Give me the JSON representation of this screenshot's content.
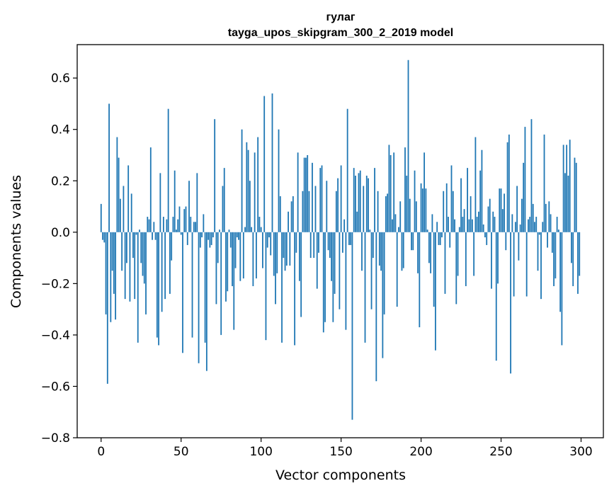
{
  "chart_data": {
    "type": "bar",
    "title": "гулаг",
    "subtitle": "tayga_upos_skipgram_300_2_2019 model",
    "xlabel": "Vector components",
    "ylabel": "Components values",
    "xlim": [
      -14.95,
      313.95
    ],
    "ylim": [
      -0.8,
      0.73
    ],
    "xticks": [
      0,
      50,
      100,
      150,
      200,
      250,
      300
    ],
    "yticks": [
      -0.8,
      -0.6,
      -0.4,
      -0.2,
      0.0,
      0.2,
      0.4,
      0.6
    ],
    "ytick_labels": [
      "−0.8",
      "−0.6",
      "−0.4",
      "−0.2",
      "0.0",
      "0.2",
      "0.4",
      "0.6"
    ],
    "bar_color": "#1f77b4",
    "x": "indices 0..299 (one bar per vector component)",
    "values": [
      0.11,
      -0.03,
      -0.04,
      -0.32,
      -0.59,
      0.5,
      -0.35,
      -0.15,
      -0.24,
      -0.34,
      0.37,
      0.29,
      0.13,
      -0.15,
      0.18,
      -0.26,
      -0.12,
      0.26,
      -0.27,
      0.15,
      -0.1,
      -0.26,
      -0.01,
      -0.43,
      0.01,
      -0.12,
      -0.17,
      -0.2,
      -0.32,
      0.06,
      0.05,
      0.33,
      -0.03,
      0.04,
      -0.03,
      -0.41,
      -0.44,
      0.23,
      -0.31,
      0.06,
      -0.26,
      0.05,
      0.48,
      -0.24,
      -0.11,
      0.06,
      0.24,
      0.01,
      0.05,
      0.1,
      -0.01,
      -0.47,
      0.09,
      0.1,
      -0.05,
      0.2,
      0.06,
      -0.41,
      0.04,
      0.04,
      0.23,
      -0.51,
      -0.06,
      -0.02,
      0.07,
      -0.43,
      -0.54,
      -0.03,
      -0.06,
      -0.05,
      -0.02,
      0.44,
      -0.28,
      -0.12,
      0.01,
      -0.4,
      0.18,
      0.25,
      -0.27,
      -0.23,
      0.01,
      -0.06,
      -0.21,
      -0.38,
      -0.14,
      -0.02,
      -0.03,
      -0.19,
      0.4,
      -0.18,
      0.02,
      0.35,
      0.32,
      0.2,
      0.02,
      -0.21,
      0.31,
      -0.18,
      0.37,
      0.06,
      0.02,
      -0.14,
      0.53,
      -0.42,
      -0.06,
      -0.02,
      -0.09,
      0.54,
      -0.17,
      -0.28,
      -0.16,
      0.4,
      0.14,
      -0.43,
      -0.1,
      -0.15,
      -0.13,
      0.08,
      -0.13,
      0.12,
      0.14,
      -0.44,
      -0.08,
      0.31,
      -0.19,
      -0.33,
      0.16,
      0.29,
      0.29,
      0.3,
      0.16,
      -0.1,
      0.27,
      -0.1,
      0.18,
      -0.22,
      -0.08,
      0.25,
      0.26,
      -0.39,
      -0.35,
      0.2,
      -0.07,
      -0.1,
      -0.19,
      -0.35,
      -0.24,
      0.16,
      0.21,
      -0.3,
      0.26,
      -0.08,
      0.05,
      -0.38,
      0.48,
      -0.05,
      -0.05,
      -0.73,
      0.25,
      0.22,
      0.08,
      0.23,
      0.24,
      -0.15,
      0.18,
      -0.43,
      0.22,
      0.21,
      0.01,
      -0.3,
      -0.1,
      0.25,
      -0.58,
      0.16,
      -0.13,
      -0.15,
      -0.49,
      -0.32,
      0.14,
      0.15,
      0.34,
      0.3,
      0.05,
      0.31,
      0.07,
      -0.29,
      0.02,
      0.12,
      -0.15,
      -0.14,
      0.33,
      0.22,
      0.67,
      0.13,
      -0.07,
      -0.07,
      0.24,
      0.12,
      -0.16,
      -0.37,
      0.19,
      0.17,
      0.31,
      0.17,
      0.01,
      -0.12,
      -0.16,
      0.07,
      -0.29,
      -0.46,
      0.04,
      -0.05,
      -0.05,
      -0.02,
      0.16,
      -0.24,
      0.19,
      0.06,
      -0.06,
      0.26,
      0.16,
      0.05,
      -0.28,
      -0.17,
      0.02,
      0.21,
      0.06,
      0.09,
      -0.21,
      0.25,
      0.05,
      0.14,
      0.05,
      -0.17,
      0.37,
      0.06,
      0.08,
      0.24,
      0.32,
      0.03,
      -0.02,
      -0.05,
      0.1,
      0.13,
      -0.22,
      0.08,
      0.06,
      -0.5,
      -0.2,
      0.17,
      0.17,
      0.09,
      0.15,
      -0.07,
      0.35,
      0.38,
      -0.55,
      0.07,
      -0.25,
      0.04,
      0.18,
      -0.11,
      0.03,
      0.13,
      0.27,
      0.41,
      -0.25,
      0.05,
      0.06,
      0.44,
      0.11,
      0.04,
      0.06,
      -0.15,
      -0.01,
      -0.26,
      0.04,
      0.38,
      0.11,
      -0.06,
      0.12,
      0.07,
      -0.08,
      -0.21,
      -0.18,
      0.06,
      0.01,
      -0.31,
      -0.44,
      0.34,
      0.23,
      0.34,
      0.22,
      0.36,
      -0.12,
      -0.21,
      0.29,
      0.27,
      -0.24,
      -0.17
    ]
  }
}
